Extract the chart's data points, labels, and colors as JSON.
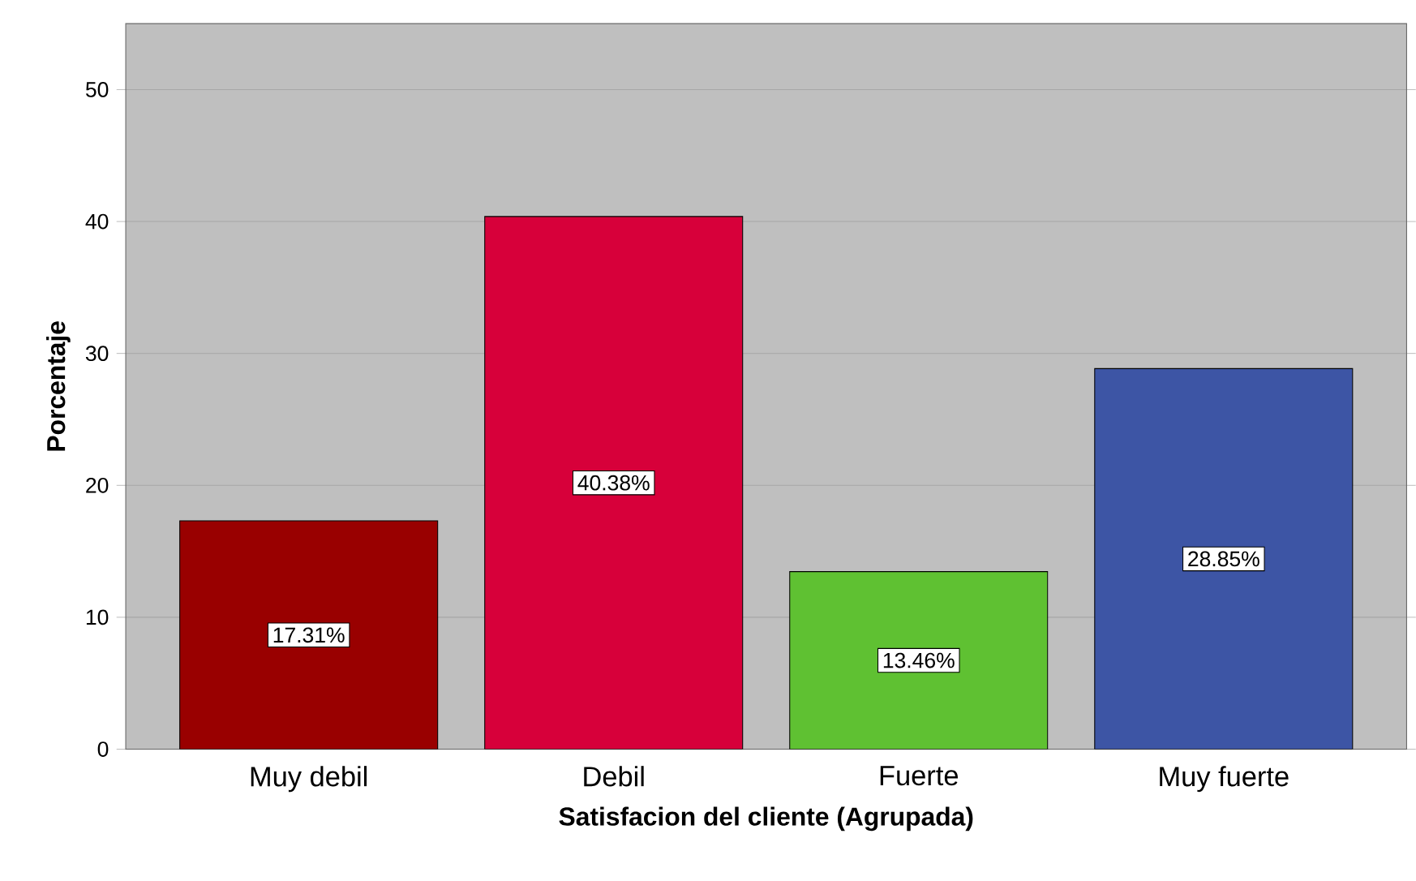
{
  "chart_data": {
    "type": "bar",
    "xlabel": "Satisfacion del cliente  (Agrupada)",
    "ylabel": "Porcentaje",
    "categories": [
      "Muy debil",
      "Debil",
      "Fuerte",
      "Muy fuerte"
    ],
    "values": [
      17.31,
      40.38,
      13.46,
      28.85
    ],
    "value_labels": [
      "17.31%",
      "40.38%",
      "13.46%",
      "28.85%"
    ],
    "colors": [
      "#990000",
      "#d7003a",
      "#5fc132",
      "#3d55a5"
    ],
    "ylim": [
      0,
      55
    ],
    "yticks": [
      0,
      10,
      20,
      30,
      40,
      50
    ],
    "grid": "y"
  }
}
